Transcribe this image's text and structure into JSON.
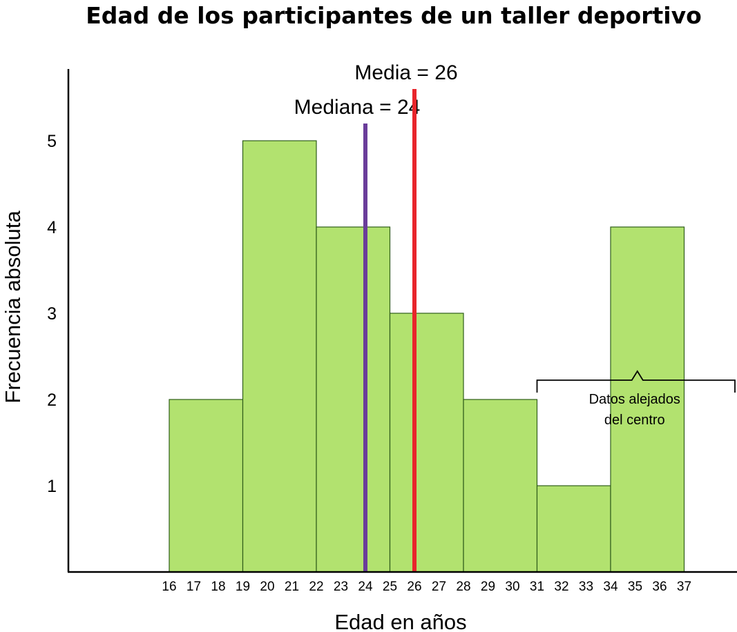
{
  "chart_data": {
    "type": "bar",
    "title": "Edad de los participantes de un taller deportivo",
    "xlabel": "Edad en años",
    "ylabel": "Frecuencia absoluta",
    "bins": [
      {
        "from": 16,
        "to": 19,
        "count": 2
      },
      {
        "from": 19,
        "to": 22,
        "count": 5
      },
      {
        "from": 22,
        "to": 25,
        "count": 4
      },
      {
        "from": 25,
        "to": 28,
        "count": 3
      },
      {
        "from": 28,
        "to": 31,
        "count": 2
      },
      {
        "from": 31,
        "to": 34,
        "count": 1
      },
      {
        "from": 34,
        "to": 37,
        "count": 4
      }
    ],
    "x_ticks": [
      16,
      17,
      18,
      19,
      20,
      21,
      22,
      23,
      24,
      25,
      26,
      27,
      28,
      29,
      30,
      31,
      32,
      33,
      34,
      35,
      36,
      37
    ],
    "y_ticks": [
      1,
      2,
      3,
      4,
      5
    ],
    "xlim": [
      12,
      39
    ],
    "ylim": [
      0,
      5.6
    ],
    "grid": false,
    "reference_lines": [
      {
        "label": "Mediana = 24",
        "x": 24,
        "color": "#6a3d9a",
        "top": 5.2
      },
      {
        "label": "Media = 26",
        "x": 26,
        "color": "#e8252b",
        "top": 5.6
      }
    ],
    "annotation": {
      "lines": [
        "Datos alejados",
        "del centro"
      ],
      "from": 31,
      "to": 39,
      "y": 2.4
    },
    "colors": {
      "bar_fill": "#b2e26f",
      "bar_stroke": "#2f5d1a",
      "axis": "#000000"
    }
  }
}
